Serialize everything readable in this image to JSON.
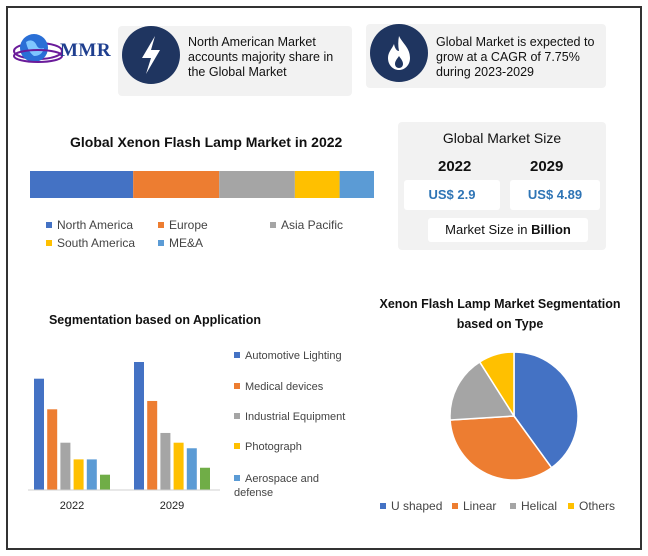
{
  "header": {
    "logo_text": "MMR",
    "card1_text": "North American Market accounts majority share in the Global Market",
    "card1_icon": "lightning-icon",
    "card2_text": "Global Market is expected to grow at a CAGR of 7.75% during 2023-2029",
    "card2_icon": "flame-icon"
  },
  "market_size": {
    "title": "Global Market Size",
    "year_a": "2022",
    "year_b": "2029",
    "value_a": "US$ 2.9",
    "value_b": "US$ 4.89",
    "unit_prefix": "Market Size in ",
    "unit_bold": "Billion"
  },
  "colors": {
    "blue": "#4472c4",
    "orange": "#ed7d31",
    "gray": "#a5a5a5",
    "yellow": "#ffc000",
    "lightblue": "#5b9bd5",
    "green": "#70ad47",
    "accent_text": "#2e74b5",
    "icon_bg": "#1f3560"
  },
  "chart_data": [
    {
      "type": "bar",
      "orientation": "stacked-horizontal",
      "title": "Global Xenon Flash Lamp Market in 2022",
      "categories": [
        "North America",
        "Europe",
        "Asia Pacific",
        "South America",
        "ME&A"
      ],
      "values": [
        30,
        25,
        22,
        13,
        10
      ],
      "legend_position": "bottom"
    },
    {
      "type": "bar",
      "title": "Segmentation based on Application",
      "categories": [
        "2022",
        "2029"
      ],
      "series": [
        {
          "name": "Automotive Lighting",
          "values": [
            80,
            92
          ]
        },
        {
          "name": "Medical devices",
          "values": [
            58,
            64
          ]
        },
        {
          "name": "Industrial Equipment",
          "values": [
            34,
            41
          ]
        },
        {
          "name": "Photograph",
          "values": [
            22,
            34
          ]
        },
        {
          "name": "Aerospace and defense",
          "values": [
            22,
            30
          ]
        },
        {
          "name": "",
          "values": [
            11,
            16
          ]
        }
      ],
      "legend_position": "right"
    },
    {
      "type": "pie",
      "title": "Xenon Flash Lamp Market Segmentation based on Type",
      "categories": [
        "U shaped",
        "Linear",
        "Helical",
        "Others"
      ],
      "values": [
        40,
        34,
        17,
        9
      ],
      "legend_position": "bottom"
    }
  ]
}
